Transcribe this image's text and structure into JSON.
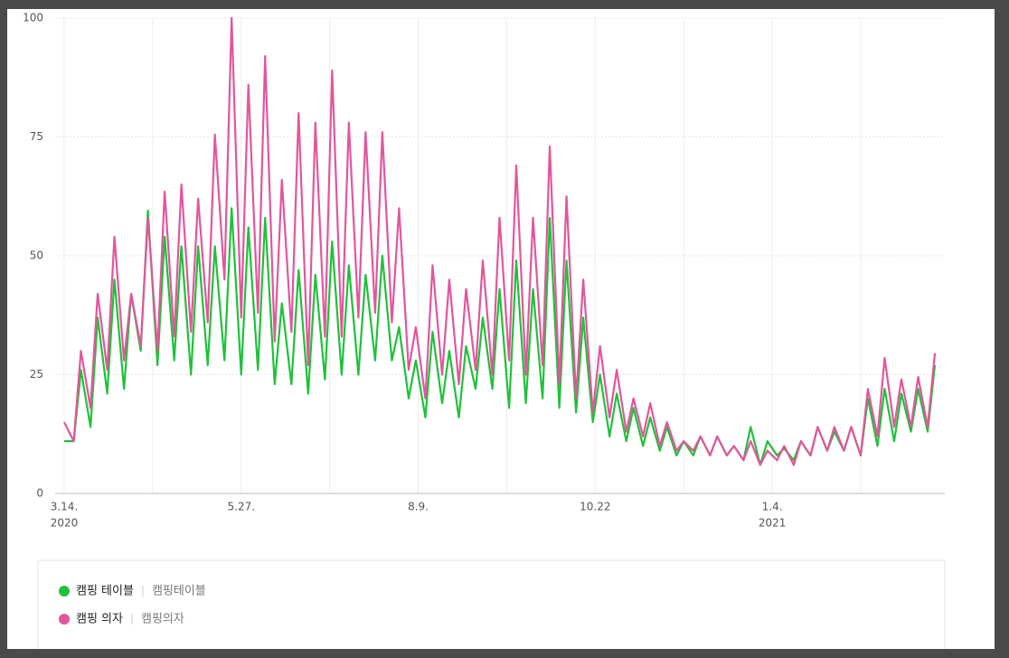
{
  "chart_data": {
    "type": "line",
    "x": [
      0,
      4,
      7,
      11,
      14,
      18,
      21,
      25,
      28,
      32,
      35,
      39,
      42,
      46,
      49,
      53,
      56,
      60,
      63,
      67,
      70,
      74,
      77,
      81,
      84,
      88,
      91,
      95,
      98,
      102,
      105,
      109,
      112,
      116,
      119,
      123,
      126,
      130,
      133,
      137,
      140,
      144,
      147,
      151,
      154,
      158,
      161,
      165,
      168,
      172,
      175,
      179,
      182,
      186,
      189,
      193,
      196,
      200,
      203,
      207,
      210,
      214,
      217,
      221,
      224,
      228,
      231,
      235,
      238,
      242,
      245,
      249,
      252,
      256,
      259,
      263,
      266,
      270,
      273,
      277,
      280,
      284,
      287,
      291,
      294,
      298,
      301,
      305,
      308,
      312,
      315,
      319,
      322,
      326,
      329,
      333,
      336,
      340,
      343,
      347,
      350,
      354,
      357,
      361,
      364
    ],
    "series": [
      {
        "name": "캠핑 테이블",
        "keywords": "캠핑테이블",
        "color": "#1fc13a",
        "values": [
          11,
          11,
          26,
          14,
          37,
          21,
          45,
          22,
          42,
          30,
          59.5,
          27,
          54,
          28,
          52,
          25,
          52,
          27,
          52,
          28,
          60,
          25,
          56,
          26,
          58,
          23,
          40,
          23,
          47,
          21,
          46,
          24,
          53,
          25,
          48,
          25,
          46,
          28,
          50,
          28,
          35,
          20,
          28,
          16,
          34,
          19,
          30,
          16,
          31,
          22,
          37,
          22,
          43,
          18,
          49,
          19,
          43,
          20,
          58,
          18,
          49,
          17,
          37,
          15,
          25,
          12,
          21,
          11,
          18,
          10,
          16,
          9,
          14,
          8,
          11,
          8,
          12,
          8,
          12,
          8,
          10,
          7,
          14,
          6,
          11,
          8,
          9.5,
          7,
          11,
          8,
          14,
          9,
          13,
          9,
          14,
          8,
          20,
          10,
          22,
          11,
          21,
          13,
          22,
          13,
          27
        ]
      },
      {
        "name": "캠핑 의자",
        "keywords": "캠핑의자",
        "color": "#e2569c",
        "values": [
          15,
          11,
          30,
          18,
          42,
          26,
          54,
          28,
          42,
          31,
          58,
          30,
          63.5,
          33,
          65,
          34,
          62,
          36,
          75.5,
          45,
          100,
          37,
          86,
          38,
          92,
          32,
          66,
          34,
          80,
          27,
          78,
          33,
          89,
          33,
          78,
          37,
          76,
          38,
          76,
          36,
          60,
          26,
          35,
          20,
          48,
          25,
          45,
          23,
          43,
          26,
          49,
          25,
          58,
          28,
          69,
          25,
          58,
          27,
          73,
          23,
          62.5,
          20,
          45,
          17,
          31,
          16,
          26,
          13,
          20,
          12,
          19,
          10,
          15,
          9,
          11,
          9,
          12,
          8,
          12,
          8,
          10,
          7,
          11,
          6,
          9,
          7,
          10,
          6,
          11,
          8,
          14,
          9,
          14,
          9,
          14,
          8,
          22,
          12,
          28.5,
          14,
          24,
          14,
          24.5,
          14,
          29.5
        ]
      }
    ],
    "xlim": [
      0,
      364
    ],
    "xticks": [
      {
        "value": 0,
        "label": "3.14."
      },
      {
        "value": 37,
        "label": null
      },
      {
        "value": 74,
        "label": "5.27."
      },
      {
        "value": 111,
        "label": null
      },
      {
        "value": 148,
        "label": "8.9."
      },
      {
        "value": 185,
        "label": null
      },
      {
        "value": 222,
        "label": "10.22"
      },
      {
        "value": 259,
        "label": null
      },
      {
        "value": 296,
        "label": "1.4."
      },
      {
        "value": 333,
        "label": null
      }
    ],
    "year_labels": [
      {
        "value": 0,
        "label": "2020"
      },
      {
        "value": 296,
        "label": "2021"
      }
    ],
    "ylim": [
      0,
      100
    ],
    "yticks": [
      0,
      25,
      50,
      75,
      100
    ],
    "grid": true
  }
}
